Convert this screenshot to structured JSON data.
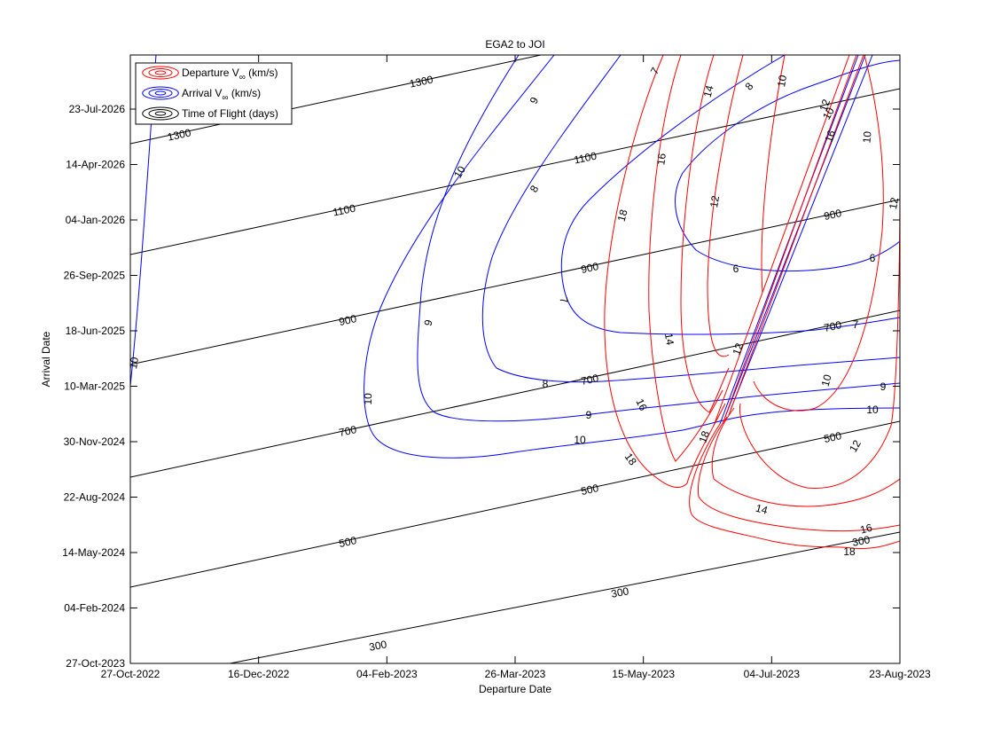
{
  "chart_data": {
    "type": "contour",
    "title": "EGA2 to JOI",
    "xlabel": "Departure Date",
    "ylabel": "Arrival Date",
    "x_ticks": [
      "27-Oct-2022",
      "16-Dec-2022",
      "04-Feb-2023",
      "26-Mar-2023",
      "15-May-2023",
      "04-Jul-2023",
      "23-Aug-2023"
    ],
    "y_ticks": [
      "27-Oct-2023",
      "04-Feb-2024",
      "14-May-2024",
      "22-Aug-2024",
      "30-Nov-2024",
      "10-Mar-2025",
      "18-Jun-2025",
      "26-Sep-2025",
      "04-Jan-2026",
      "14-Apr-2026",
      "23-Jul-2026"
    ],
    "xlim": [
      "27-Oct-2022",
      "23-Aug-2023"
    ],
    "ylim": [
      "27-Oct-2023",
      "18-Sep-2026"
    ],
    "grid": false,
    "legend": {
      "placement": "top-left",
      "entries": [
        {
          "label_pre": "Departure V",
          "label_sub": "∞",
          "label_post": " (km/s)",
          "color": "#ff0000"
        },
        {
          "label_pre": "Arrival V",
          "label_sub": "∞",
          "label_post": " (km/s)",
          "color": "#0000ff"
        },
        {
          "label_pre": "Time of Flight (days)",
          "label_sub": "",
          "label_post": "",
          "color": "#000000"
        }
      ]
    },
    "series": [
      {
        "name": "Time of Flight (days)",
        "color": "#000000",
        "levels": [
          {
            "level": 300,
            "labels": [
              "300",
              "300",
              "300"
            ]
          },
          {
            "level": 500,
            "labels": [
              "500",
              "500",
              "500"
            ]
          },
          {
            "level": 700,
            "labels": [
              "700",
              "700",
              "700",
              "700"
            ]
          },
          {
            "level": 900,
            "labels": [
              "900",
              "900",
              "900"
            ]
          },
          {
            "level": 1100,
            "labels": [
              "1100",
              "1100"
            ]
          },
          {
            "level": 1300,
            "labels": [
              "1300",
              "1300"
            ]
          }
        ]
      },
      {
        "name": "Arrival V∞ (km/s)",
        "color": "#0000ff",
        "levels": [
          {
            "level": 6,
            "labels": [
              "6",
              "6"
            ]
          },
          {
            "level": 7,
            "labels": [
              "7",
              "7",
              "7"
            ]
          },
          {
            "level": 8,
            "labels": [
              "8",
              "8",
              "8"
            ]
          },
          {
            "level": 9,
            "labels": [
              "9",
              "9",
              "9",
              "9"
            ]
          },
          {
            "level": 10,
            "labels": [
              "10",
              "10",
              "10",
              "10",
              "10",
              "10"
            ]
          }
        ]
      },
      {
        "name": "Departure V∞ (km/s)",
        "color": "#ff0000",
        "levels": [
          {
            "level": 10,
            "labels": [
              "10",
              "10",
              "10"
            ]
          },
          {
            "level": 12,
            "labels": [
              "12",
              "12",
              "12",
              "12",
              "12"
            ]
          },
          {
            "level": 14,
            "labels": [
              "14",
              "14",
              "14"
            ]
          },
          {
            "level": 16,
            "labels": [
              "16",
              "16",
              "16",
              "16"
            ]
          },
          {
            "level": 18,
            "labels": [
              "18",
              "18",
              "18",
              "18"
            ]
          }
        ]
      }
    ]
  }
}
